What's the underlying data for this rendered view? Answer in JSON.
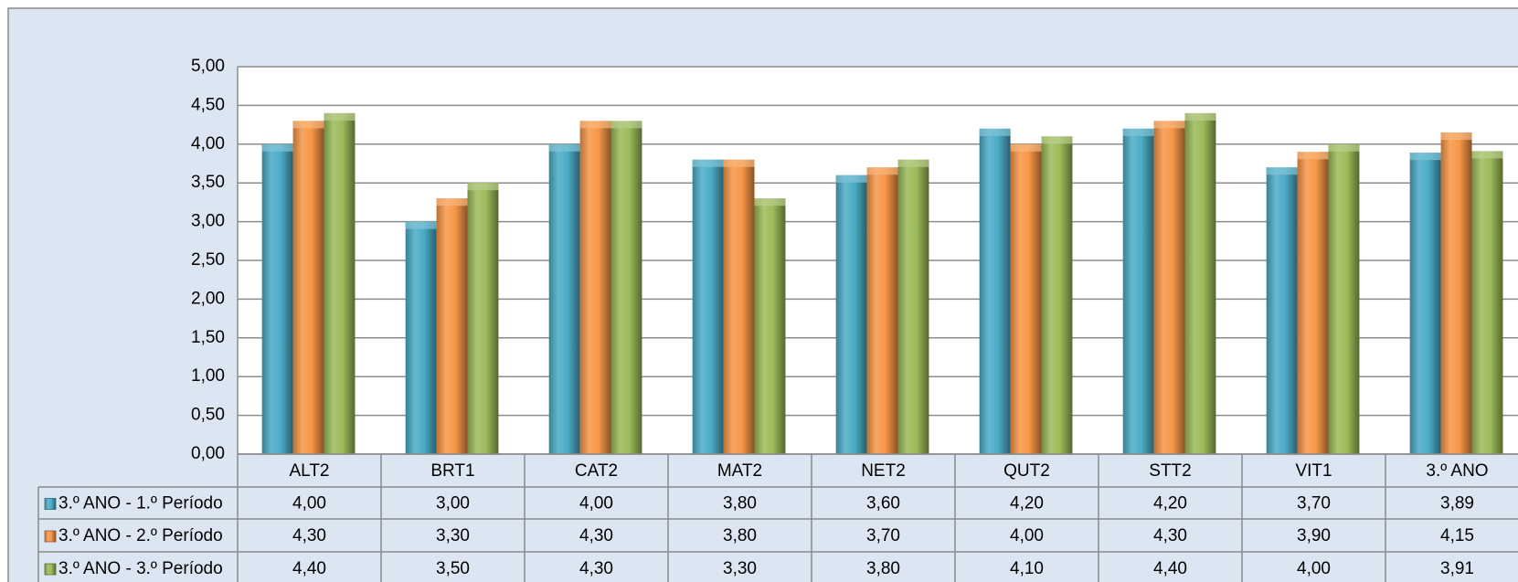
{
  "chart_data": {
    "type": "bar",
    "categories": [
      "ALT2",
      "BRT1",
      "CAT2",
      "MAT2",
      "NET2",
      "QUT2",
      "STT2",
      "VIT1",
      "3.º ANO"
    ],
    "series": [
      {
        "name": "3.º ANO - 1.º Período",
        "color": "#4bacc6",
        "values": [
          4.0,
          3.0,
          4.0,
          3.8,
          3.6,
          4.2,
          4.2,
          3.7,
          3.89
        ],
        "value_labels": [
          "4,00",
          "3,00",
          "4,00",
          "3,80",
          "3,60",
          "4,20",
          "4,20",
          "3,70",
          "3,89"
        ]
      },
      {
        "name": "3.º ANO - 2.º Período",
        "color": "#f79646",
        "values": [
          4.3,
          3.3,
          4.3,
          3.8,
          3.7,
          4.0,
          4.3,
          3.9,
          4.15
        ],
        "value_labels": [
          "4,30",
          "3,30",
          "4,30",
          "3,80",
          "3,70",
          "4,00",
          "4,30",
          "3,90",
          "4,15"
        ]
      },
      {
        "name": "3.º ANO - 3.º Período",
        "color": "#9bbb59",
        "values": [
          4.4,
          3.5,
          4.3,
          3.3,
          3.8,
          4.1,
          4.4,
          4.0,
          3.91
        ],
        "value_labels": [
          "4,40",
          "3,50",
          "4,30",
          "3,30",
          "3,80",
          "4,10",
          "4,40",
          "4,00",
          "3,91"
        ]
      }
    ],
    "ylim": [
      0,
      5
    ],
    "yticks": [
      {
        "value": 0,
        "label": "0,00"
      },
      {
        "value": 0.5,
        "label": "0,50"
      },
      {
        "value": 1,
        "label": "1,00"
      },
      {
        "value": 1.5,
        "label": "1,50"
      },
      {
        "value": 2,
        "label": "2,00"
      },
      {
        "value": 2.5,
        "label": "2,50"
      },
      {
        "value": 3,
        "label": "3,00"
      },
      {
        "value": 3.5,
        "label": "3,50"
      },
      {
        "value": 4,
        "label": "4,00"
      },
      {
        "value": 4.5,
        "label": "4,50"
      },
      {
        "value": 5,
        "label": "5,00"
      }
    ],
    "grid": true
  }
}
